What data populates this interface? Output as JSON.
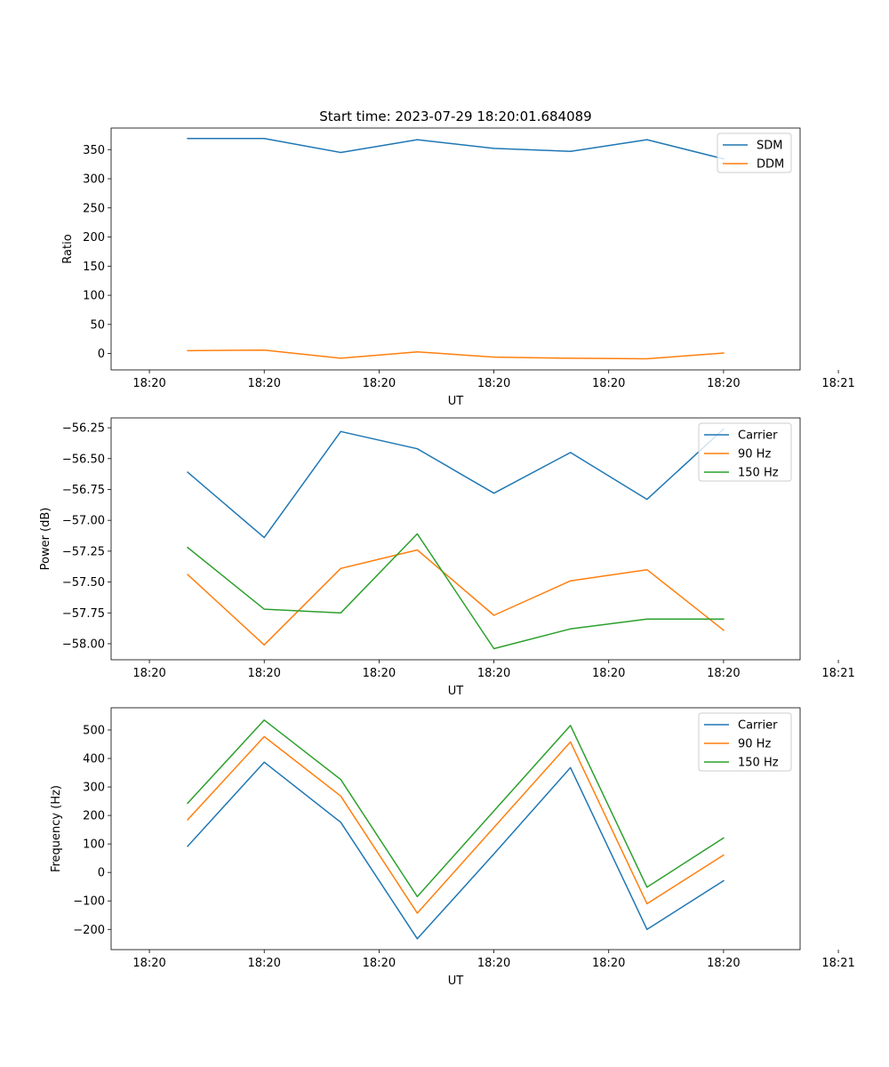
{
  "chart_data": [
    {
      "type": "line",
      "title": "Start time: 2023-07-29 18:20:01.684089",
      "xlabel": "UT",
      "ylabel": "Ratio",
      "x": [
        0.5,
        1.5,
        2.5,
        3.5,
        4.5,
        5.5,
        6.5,
        7.5
      ],
      "xlim": [
        -0.5,
        8.5
      ],
      "xticks": [
        0,
        1.5,
        3,
        4.5,
        6,
        7.5,
        9
      ],
      "xtick_labels": [
        "18:20",
        "18:20",
        "18:20",
        "18:20",
        "18:20",
        "18:20",
        "18:21"
      ],
      "ylim": [
        -28,
        387
      ],
      "yticks": [
        0,
        50,
        100,
        150,
        200,
        250,
        300,
        350
      ],
      "ytick_labels": [
        "0",
        "50",
        "100",
        "150",
        "200",
        "250",
        "300",
        "350"
      ],
      "legend_position": "top-right",
      "series": [
        {
          "name": "SDM",
          "color": "#1f77b4",
          "values": [
            369,
            369,
            345,
            367,
            352,
            347,
            367,
            334
          ]
        },
        {
          "name": "DDM",
          "color": "#ff7f0e",
          "values": [
            5,
            6,
            -8,
            3,
            -6,
            -8,
            -9,
            1
          ]
        }
      ]
    },
    {
      "type": "line",
      "title": "",
      "xlabel": "UT",
      "ylabel": "Power (dB)",
      "x": [
        0.5,
        1.5,
        2.5,
        3.5,
        4.5,
        5.5,
        6.5,
        7.5
      ],
      "xlim": [
        -0.5,
        8.5
      ],
      "xticks": [
        0,
        1.5,
        3,
        4.5,
        6,
        7.5,
        9
      ],
      "xtick_labels": [
        "18:20",
        "18:20",
        "18:20",
        "18:20",
        "18:20",
        "18:20",
        "18:21"
      ],
      "ylim": [
        -58.13,
        -56.17
      ],
      "yticks": [
        -58.0,
        -57.75,
        -57.5,
        -57.25,
        -57.0,
        -56.75,
        -56.5,
        -56.25
      ],
      "ytick_labels": [
        "−58.00",
        "−57.75",
        "−57.50",
        "−57.25",
        "−57.00",
        "−56.75",
        "−56.50",
        "−56.25"
      ],
      "legend_position": "top-right",
      "series": [
        {
          "name": "Carrier",
          "color": "#1f77b4",
          "values": [
            -56.61,
            -57.14,
            -56.28,
            -56.42,
            -56.78,
            -56.45,
            -56.83,
            -56.26
          ]
        },
        {
          "name": "90 Hz",
          "color": "#ff7f0e",
          "values": [
            -57.44,
            -58.01,
            -57.39,
            -57.24,
            -57.77,
            -57.49,
            -57.4,
            -57.89
          ]
        },
        {
          "name": "150 Hz",
          "color": "#2ca02c",
          "values": [
            -57.22,
            -57.72,
            -57.75,
            -57.11,
            -58.04,
            -57.88,
            -57.8,
            -57.8
          ]
        }
      ]
    },
    {
      "type": "line",
      "title": "",
      "xlabel": "UT",
      "ylabel": "Frequency (Hz)",
      "x": [
        0.5,
        1.5,
        2.5,
        3.5,
        4.5,
        5.5,
        6.5,
        7.5
      ],
      "xlim": [
        -0.5,
        8.5
      ],
      "xticks": [
        0,
        1.5,
        3,
        4.5,
        6,
        7.5,
        9
      ],
      "xtick_labels": [
        "18:20",
        "18:20",
        "18:20",
        "18:20",
        "18:20",
        "18:20",
        "18:21"
      ],
      "ylim": [
        -271,
        578
      ],
      "yticks": [
        -200,
        -100,
        0,
        100,
        200,
        300,
        400,
        500
      ],
      "ytick_labels": [
        "−200",
        "−100",
        "0",
        "100",
        "200",
        "300",
        "400",
        "500"
      ],
      "legend_position": "top-right",
      "series": [
        {
          "name": "Carrier",
          "color": "#1f77b4",
          "values": [
            92,
            387,
            176,
            -233,
            65,
            368,
            -200,
            -29
          ]
        },
        {
          "name": "90 Hz",
          "color": "#ff7f0e",
          "values": [
            185,
            477,
            268,
            -143,
            158,
            458,
            -110,
            61
          ]
        },
        {
          "name": "150 Hz",
          "color": "#2ca02c",
          "values": [
            243,
            535,
            326,
            -85,
            216,
            516,
            -52,
            121
          ]
        }
      ]
    }
  ]
}
